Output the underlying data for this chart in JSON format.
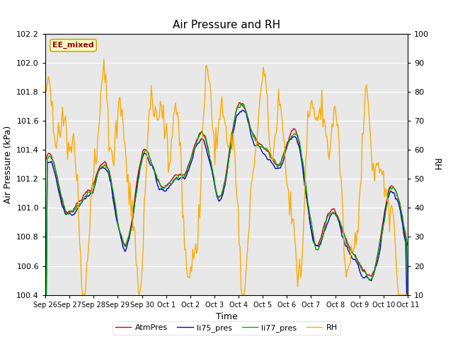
{
  "title": "Air Pressure and RH",
  "xlabel": "Time",
  "ylabel_left": "Air Pressure (kPa)",
  "ylabel_right": "RH",
  "annotation": "EE_mixed",
  "ylim_left": [
    100.4,
    102.2
  ],
  "ylim_right": [
    10,
    100
  ],
  "yticks_left": [
    100.4,
    100.6,
    100.8,
    101.0,
    101.2,
    101.4,
    101.6,
    101.8,
    102.0,
    102.2
  ],
  "yticks_right": [
    10,
    20,
    30,
    40,
    50,
    60,
    70,
    80,
    90,
    100
  ],
  "legend_labels": [
    "AtmPres",
    "li75_pres",
    "li77_pres",
    "RH"
  ],
  "legend_colors": [
    "#cc0000",
    "#0000cc",
    "#00aa00",
    "#ffaa00"
  ],
  "plot_bg_color": "#e8e8e8",
  "fig_bg_color": "#ffffff",
  "grid_color": "#ffffff",
  "title_fontsize": 11,
  "label_fontsize": 9,
  "tick_fontsize": 8,
  "n_points": 360,
  "xtick_labels": [
    "Sep 26",
    "Sep 27",
    "Sep 28",
    "Sep 29",
    "Sep 30",
    "Oct 1",
    "Oct 2",
    "Oct 3",
    "Oct 4",
    "Oct 5",
    "Oct 6",
    "Oct 7",
    "Oct 8",
    "Oct 9",
    "Oct 10",
    "Oct 11"
  ],
  "line_width": 1.0
}
